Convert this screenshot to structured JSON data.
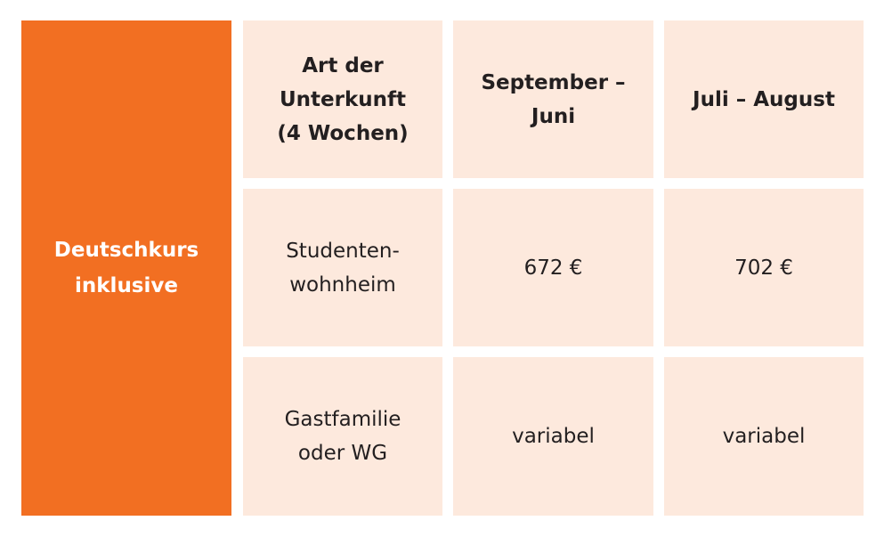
{
  "side_label": "Deutschkurs\ninklusive",
  "table": {
    "headers": [
      "Art der\nUnterkunft\n(4 Wochen)",
      "September – Juni",
      "Juli – August"
    ],
    "rows": [
      [
        "Studenten-\nwohnheim",
        "672 €",
        "702 €"
      ],
      [
        "Gastfamilie\noder WG",
        "variabel",
        "variabel"
      ]
    ]
  },
  "colors": {
    "accent": "#f26f22",
    "cell_background": "#fde9dd",
    "text": "#231f20"
  }
}
